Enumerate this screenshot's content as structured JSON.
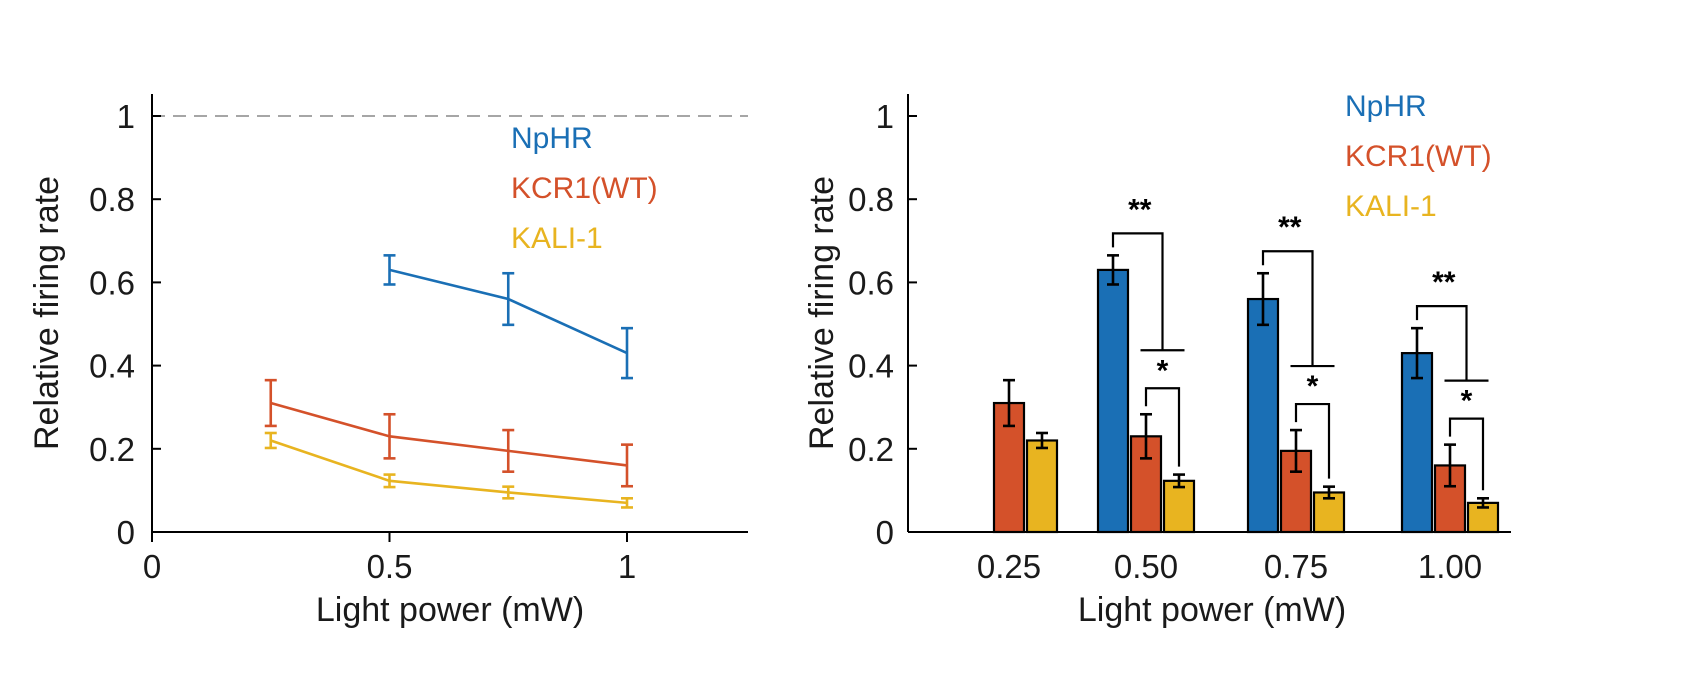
{
  "chart_data": [
    {
      "type": "line",
      "xlabel": "Light power (mW)",
      "ylabel": "Relative firing rate",
      "xlim": [
        0,
        1.25
      ],
      "ylim": [
        0,
        1
      ],
      "x_ticks": [
        "0",
        "0.5",
        "1"
      ],
      "x_tick_values": [
        0,
        0.5,
        1
      ],
      "y_ticks": [
        "0",
        "0.2",
        "0.4",
        "0.6",
        "0.8",
        "1"
      ],
      "y_tick_values": [
        0,
        0.2,
        0.4,
        0.6,
        0.8,
        1
      ],
      "reference_line": 1,
      "legend_position": "top-right",
      "series": [
        {
          "name": "NpHR",
          "color": "#1a6fb5",
          "x": [
            0.5,
            0.75,
            1
          ],
          "values": [
            0.63,
            0.56,
            0.43
          ],
          "errors": [
            0.035,
            0.062,
            0.06
          ]
        },
        {
          "name": "KCR1(WT)",
          "color": "#d4512a",
          "x": [
            0.25,
            0.5,
            0.75,
            1
          ],
          "values": [
            0.31,
            0.23,
            0.195,
            0.16
          ],
          "errors": [
            0.055,
            0.053,
            0.05,
            0.05
          ]
        },
        {
          "name": "KALI-1",
          "color": "#e8b420",
          "x": [
            0.25,
            0.5,
            0.75,
            1
          ],
          "values": [
            0.22,
            0.123,
            0.095,
            0.07
          ],
          "errors": [
            0.018,
            0.015,
            0.014,
            0.011
          ]
        }
      ]
    },
    {
      "type": "bar",
      "xlabel": "Light power (mW)",
      "ylabel": "Relative firing rate",
      "ylim": [
        0,
        1
      ],
      "categories": [
        "0.25",
        "0.50",
        "0.75",
        "1.00"
      ],
      "y_ticks": [
        "0",
        "0.2",
        "0.4",
        "0.6",
        "0.8",
        "1"
      ],
      "y_tick_values": [
        0,
        0.2,
        0.4,
        0.6,
        0.8,
        1
      ],
      "legend_position": "top-right",
      "series": [
        {
          "name": "NpHR",
          "color": "#1a6fb5",
          "values": [
            null,
            0.63,
            0.56,
            0.43
          ],
          "errors": [
            null,
            0.035,
            0.062,
            0.06
          ]
        },
        {
          "name": "KCR1(WT)",
          "color": "#d4512a",
          "values": [
            0.31,
            0.23,
            0.195,
            0.16
          ],
          "errors": [
            0.055,
            0.053,
            0.05,
            0.05
          ]
        },
        {
          "name": "KALI-1",
          "color": "#e8b420",
          "values": [
            0.22,
            0.123,
            0.095,
            0.07
          ],
          "errors": [
            0.018,
            0.015,
            0.014,
            0.011
          ]
        }
      ],
      "significance": [
        {
          "category": "0.50",
          "outer": "**",
          "inner": "*"
        },
        {
          "category": "0.75",
          "outer": "**",
          "inner": "*"
        },
        {
          "category": "1.00",
          "outer": "**",
          "inner": "*"
        }
      ]
    }
  ]
}
